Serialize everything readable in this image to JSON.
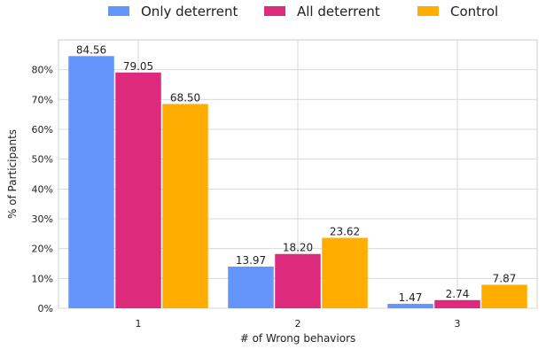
{
  "chart_data": {
    "type": "bar",
    "title": "",
    "xlabel": "# of Wrong behaviors",
    "ylabel": "% of Participants",
    "categories": [
      "1",
      "2",
      "3"
    ],
    "series": [
      {
        "name": "Only deterrent",
        "color": "#6495fb",
        "values": [
          84.56,
          13.97,
          1.47
        ],
        "labels": [
          "84.56",
          "13.97",
          "1.47"
        ]
      },
      {
        "name": "All deterrent",
        "color": "#dd2a7d",
        "values": [
          79.05,
          18.2,
          2.74
        ],
        "labels": [
          "79.05",
          "18.20",
          "2.74"
        ]
      },
      {
        "name": "Control",
        "color": "#ffad00",
        "values": [
          68.5,
          23.62,
          7.87
        ],
        "labels": [
          "68.50",
          "23.62",
          "7.87"
        ]
      }
    ],
    "ylim": [
      0,
      90
    ],
    "yticks": [
      0,
      10,
      20,
      30,
      40,
      50,
      60,
      70,
      80
    ],
    "ytick_labels": [
      "0%",
      "10%",
      "20%",
      "30%",
      "40%",
      "50%",
      "60%",
      "70%",
      "80%"
    ],
    "grid": true,
    "legend_position": "top-center"
  }
}
